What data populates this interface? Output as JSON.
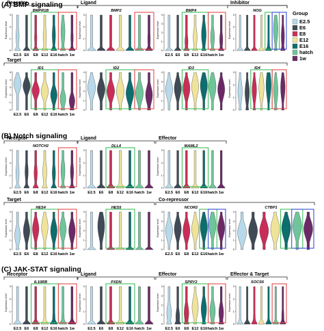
{
  "figure": {
    "sections": [
      "(A) BMP signaling",
      "(B) Notch signaling",
      "(C) JAK-STAT signaling"
    ],
    "legend": {
      "title": "Group",
      "items": [
        {
          "label": "E2.5",
          "color": "#b7d9ea"
        },
        {
          "label": "E6",
          "color": "#3f4a56"
        },
        {
          "label": "E8",
          "color": "#c92e58"
        },
        {
          "label": "E12",
          "color": "#efe39a"
        },
        {
          "label": "E16",
          "color": "#0d6e6e"
        },
        {
          "label": "hatch",
          "color": "#6fc49b"
        },
        {
          "label": "1w",
          "color": "#6b2a66"
        }
      ]
    },
    "y_label": "Expression level",
    "box_colors": {
      "red": "#e34a4a",
      "green": "#3cbf5a",
      "blue": "#3a4fd8"
    }
  },
  "chart_data": {
    "type": "violin",
    "groups": [
      "E2.5",
      "E6",
      "E8",
      "E12",
      "E16",
      "hatch",
      "1w"
    ],
    "categories": [
      {
        "label": "Receptor",
        "section": 0
      },
      {
        "label": "Ligand",
        "section": 0
      },
      {
        "label": "Inhibitor",
        "section": 0
      },
      {
        "label": "Target",
        "section": 0
      },
      {
        "label": "Receptor",
        "section": 1
      },
      {
        "label": "Ligand",
        "section": 1
      },
      {
        "label": "Effector",
        "section": 1
      },
      {
        "label": "Target",
        "section": 1
      },
      {
        "label": "Co-repressor",
        "section": 1
      },
      {
        "label": "Receptor",
        "section": 2
      },
      {
        "label": "Ligand",
        "section": 2
      },
      {
        "label": "Effector",
        "section": 2
      },
      {
        "label": "Effector & Target",
        "section": 2
      }
    ],
    "panels": [
      {
        "gene": "BMPR1B",
        "ymax": 3,
        "medians": [
          1.2,
          1.0,
          1.1,
          1.2,
          1.3,
          1.6,
          1.1
        ],
        "spread": [
          0.7,
          0.6,
          0.6,
          0.8,
          0.9,
          1.0,
          0.7
        ],
        "zero": [
          0.6,
          0.8,
          0.7,
          0.6,
          0.6,
          0.5,
          0.7
        ],
        "boxes": [
          {
            "color": "green",
            "from": 2,
            "to": 4
          },
          {
            "color": "red",
            "from": 5,
            "to": 6
          }
        ]
      },
      {
        "gene": "BMP2",
        "ymax": 3,
        "medians": [
          0,
          0,
          0.3,
          0.2,
          0.3,
          0.2,
          1.0
        ],
        "spread": [
          0.3,
          0.3,
          0.6,
          0.5,
          0.6,
          0.5,
          0.8
        ],
        "zero": [
          0.95,
          0.95,
          0.9,
          0.9,
          0.9,
          0.9,
          0.7
        ],
        "boxes": [
          {
            "color": "red",
            "from": 5,
            "to": 6
          }
        ]
      },
      {
        "gene": "BMP4",
        "ymax": 4,
        "medians": [
          0.5,
          0.6,
          1.0,
          1.5,
          1.8,
          1.5,
          1.2
        ],
        "spread": [
          0.5,
          0.6,
          0.8,
          1.0,
          1.2,
          1.0,
          0.9
        ],
        "zero": [
          0.9,
          0.8,
          0.6,
          0.5,
          0.4,
          0.5,
          0.6
        ],
        "boxes": [
          {
            "color": "green",
            "from": 2,
            "to": 4
          },
          {
            "color": "red",
            "from": 5,
            "to": 6
          }
        ]
      },
      {
        "gene": "NOG",
        "ymax": 3,
        "medians": [
          0,
          0,
          0,
          0,
          0.5,
          1.8,
          1.2
        ],
        "spread": [
          0.2,
          0.2,
          0.2,
          0.3,
          0.8,
          1.0,
          0.9
        ],
        "zero": [
          0.98,
          0.98,
          0.98,
          0.95,
          0.7,
          0.3,
          0.5
        ],
        "boxes": [
          {
            "color": "green",
            "from": 4,
            "to": 5
          },
          {
            "color": "blue",
            "from": 5,
            "to": 6
          }
        ]
      },
      {
        "gene": "ID1",
        "ymax": 5,
        "medians": [
          3.5,
          3.2,
          2.6,
          2.5,
          2.0,
          1.5,
          1.2
        ],
        "spread": [
          0.9,
          0.8,
          0.8,
          0.9,
          0.9,
          0.9,
          0.8
        ],
        "zero": [
          0.1,
          0.1,
          0.1,
          0.1,
          0.2,
          0.3,
          0.3
        ],
        "boxes": [
          {
            "color": "green",
            "from": 2,
            "to": 4
          },
          {
            "color": "red",
            "from": 5,
            "to": 6
          }
        ]
      },
      {
        "gene": "ID2",
        "ymax": 4,
        "medians": [
          2.4,
          2.2,
          2.0,
          2.0,
          1.8,
          1.8,
          1.6
        ],
        "spread": [
          0.9,
          0.8,
          0.8,
          0.9,
          0.9,
          0.9,
          0.9
        ],
        "zero": [
          0.1,
          0.1,
          0.1,
          0.1,
          0.1,
          0.1,
          0.2
        ],
        "boxes": [
          {
            "color": "green",
            "from": 2,
            "to": 4
          },
          {
            "color": "red",
            "from": 5,
            "to": 6
          }
        ]
      },
      {
        "gene": "ID3",
        "ymax": 4,
        "medians": [
          2.2,
          2.3,
          2.3,
          2.5,
          2.6,
          2.5,
          2.2
        ],
        "spread": [
          0.9,
          0.9,
          0.9,
          1.0,
          1.0,
          1.0,
          0.9
        ],
        "zero": [
          0.1,
          0.1,
          0.1,
          0.1,
          0.1,
          0.1,
          0.1
        ],
        "boxes": [
          {
            "color": "green",
            "from": 2,
            "to": 4
          }
        ]
      },
      {
        "gene": "ID4",
        "ymax": 3,
        "medians": [
          1.5,
          1.4,
          1.6,
          1.8,
          2.0,
          1.6,
          1.8
        ],
        "spread": [
          0.8,
          0.8,
          0.8,
          0.9,
          1.0,
          0.9,
          0.9
        ],
        "zero": [
          0.3,
          0.3,
          0.3,
          0.2,
          0.2,
          0.3,
          0.3
        ],
        "boxes": [
          {
            "color": "green",
            "from": 2,
            "to": 4
          },
          {
            "color": "red",
            "from": 5,
            "to": 6
          }
        ]
      },
      {
        "gene": "NOTCH2",
        "ymax": 3,
        "medians": [
          1.2,
          1.3,
          1.2,
          1.3,
          1.2,
          1.4,
          1.3
        ],
        "spread": [
          0.7,
          0.7,
          0.7,
          0.8,
          0.7,
          0.8,
          0.7
        ],
        "zero": [
          0.6,
          0.6,
          0.6,
          0.5,
          0.6,
          0.5,
          0.6
        ],
        "boxes": [
          {
            "color": "red",
            "from": 5,
            "to": 6
          }
        ]
      },
      {
        "gene": "DLL4",
        "ymax": 3,
        "medians": [
          0,
          0,
          0.3,
          0.6,
          0.2,
          0,
          0
        ],
        "spread": [
          0.2,
          0.2,
          0.5,
          0.8,
          0.4,
          0.2,
          0.2
        ],
        "zero": [
          0.98,
          0.98,
          0.85,
          0.7,
          0.9,
          0.98,
          0.98
        ],
        "boxes": [
          {
            "color": "green",
            "from": 2,
            "to": 4
          }
        ]
      },
      {
        "gene": "MAML2",
        "ymax": 3,
        "medians": [
          0,
          0,
          0.2,
          0.3,
          0.2,
          0.2,
          0.1
        ],
        "spread": [
          0.2,
          0.3,
          0.4,
          0.4,
          0.4,
          0.4,
          0.3
        ],
        "zero": [
          0.95,
          0.9,
          0.85,
          0.85,
          0.85,
          0.85,
          0.9
        ],
        "boxes": [
          {
            "color": "green",
            "from": 2,
            "to": 4
          }
        ]
      },
      {
        "gene": "HES4",
        "ymax": 4,
        "medians": [
          1.5,
          2.0,
          2.2,
          2.4,
          2.0,
          2.2,
          2.0
        ],
        "spread": [
          0.8,
          0.9,
          0.9,
          1.0,
          0.9,
          0.9,
          0.9
        ],
        "zero": [
          0.3,
          0.2,
          0.2,
          0.2,
          0.2,
          0.2,
          0.2
        ],
        "boxes": [
          {
            "color": "green",
            "from": 2,
            "to": 4
          },
          {
            "color": "red",
            "from": 5,
            "to": 6
          }
        ]
      },
      {
        "gene": "HES5",
        "ymax": 4,
        "medians": [
          0,
          2.5,
          0,
          0,
          0,
          0,
          0
        ],
        "spread": [
          0.2,
          1.2,
          0.2,
          0.2,
          0.2,
          0.2,
          0.2
        ],
        "zero": [
          0.98,
          0.2,
          0.98,
          0.98,
          0.98,
          0.98,
          0.98
        ],
        "boxes": [
          {
            "color": "green",
            "from": 2,
            "to": 4
          }
        ]
      },
      {
        "gene": "NCOR2",
        "ymax": 4,
        "medians": [
          2.0,
          2.2,
          2.0,
          2.2,
          2.4,
          2.6,
          2.3
        ],
        "spread": [
          0.9,
          0.9,
          0.9,
          0.9,
          1.0,
          1.0,
          0.9
        ],
        "zero": [
          0.1,
          0.1,
          0.1,
          0.1,
          0.1,
          0.1,
          0.1
        ],
        "boxes": [
          {
            "color": "green",
            "from": 4,
            "to": 5
          },
          {
            "color": "blue",
            "from": 5,
            "to": 6
          }
        ]
      },
      {
        "gene": "CTBP1",
        "ymax": 4,
        "medians": [
          1.8,
          2.0,
          2.0,
          2.2,
          2.3,
          2.5,
          2.2
        ],
        "spread": [
          0.9,
          0.9,
          0.9,
          1.0,
          1.0,
          1.0,
          0.9
        ],
        "zero": [
          0.1,
          0.1,
          0.1,
          0.1,
          0.1,
          0.1,
          0.1
        ],
        "boxes": [
          {
            "color": "green",
            "from": 4,
            "to": 5
          },
          {
            "color": "blue",
            "from": 5,
            "to": 6
          }
        ]
      },
      {
        "gene": "IL10RB",
        "ymax": 3,
        "medians": [
          0,
          0,
          0.3,
          0.4,
          0.5,
          0.5,
          0.4
        ],
        "spread": [
          0.3,
          0.3,
          0.5,
          0.6,
          0.7,
          0.7,
          0.6
        ],
        "zero": [
          0.9,
          0.9,
          0.8,
          0.75,
          0.7,
          0.7,
          0.75
        ],
        "boxes": [
          {
            "color": "green",
            "from": 2,
            "to": 4
          },
          {
            "color": "red",
            "from": 5,
            "to": 6
          }
        ]
      },
      {
        "gene": "PXDN",
        "ymax": 3,
        "medians": [
          0,
          0,
          0.2,
          0.3,
          0.2,
          0.1,
          0.1
        ],
        "spread": [
          0.2,
          0.3,
          0.4,
          0.5,
          0.4,
          0.3,
          0.3
        ],
        "zero": [
          0.95,
          0.9,
          0.85,
          0.8,
          0.85,
          0.9,
          0.9
        ],
        "boxes": [
          {
            "color": "green",
            "from": 2,
            "to": 4
          }
        ]
      },
      {
        "gene": "SPRY2",
        "ymax": 4,
        "medians": [
          1.2,
          0.8,
          1.2,
          1.8,
          1.6,
          1.4,
          1.2
        ],
        "spread": [
          0.9,
          0.8,
          0.9,
          1.0,
          1.0,
          0.9,
          0.9
        ],
        "zero": [
          0.4,
          0.5,
          0.4,
          0.2,
          0.3,
          0.3,
          0.4
        ],
        "boxes": [
          {
            "color": "green",
            "from": 2,
            "to": 4
          },
          {
            "color": "red",
            "from": 5,
            "to": 6
          }
        ]
      },
      {
        "gene": "SOCS6",
        "ymax": 3,
        "medians": [
          0.3,
          0.3,
          0.5,
          0.4,
          0.4,
          0.3,
          0.6
        ],
        "spread": [
          0.5,
          0.5,
          0.6,
          0.6,
          0.6,
          0.5,
          0.7
        ],
        "zero": [
          0.8,
          0.8,
          0.7,
          0.75,
          0.75,
          0.8,
          0.65
        ],
        "boxes": [
          {
            "color": "red",
            "from": 5,
            "to": 6
          }
        ]
      }
    ]
  }
}
